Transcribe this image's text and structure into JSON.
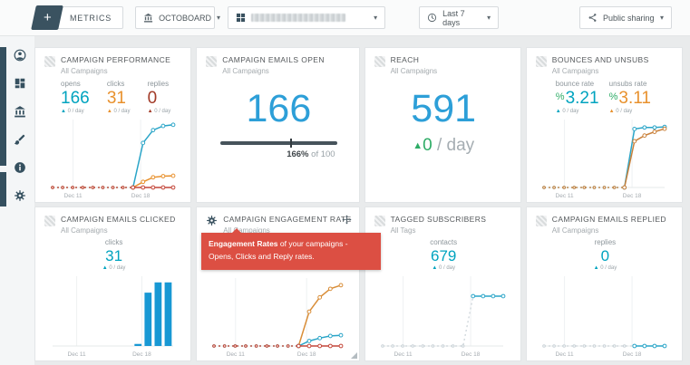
{
  "colors": {
    "navy": "#3a5260",
    "teal": "#00a3bf",
    "orange": "#e8912d",
    "maroon": "#a23b28",
    "blue": "#2d9fd8",
    "green": "#2eac66",
    "tooltip-red": "#dc4f43"
  },
  "topbar": {
    "metrics_button": {
      "plus": "+",
      "label": "METRICS",
      "icon": "plus-icon"
    },
    "org_dropdown": {
      "label": "OCTOBOARD",
      "icon": "bank-icon",
      "caret": "▾"
    },
    "dashboard_dropdown": {
      "label": "",
      "masked": true,
      "icon": "grid-icon",
      "caret": "▾"
    },
    "time_dropdown": {
      "label": "Last 7 days",
      "icon": "clock-icon",
      "caret": "▾"
    },
    "sharing_dropdown": {
      "label": "Public sharing",
      "icon": "share-icon",
      "caret": "▾"
    }
  },
  "sidebar": {
    "items": [
      {
        "icon": "account-icon"
      },
      {
        "icon": "dashboards-icon"
      },
      {
        "icon": "templates-icon"
      },
      {
        "icon": "theme-icon"
      },
      {
        "icon": "info-icon"
      },
      {
        "icon": "settings-icon"
      }
    ]
  },
  "tooltip": {
    "bold": "Engagement Rates",
    "rest": " of your campaigns - Opens, Clicks and Reply rates."
  },
  "cards": [
    {
      "title": "CAMPAIGN PERFORMANCE",
      "subtitle": "All Campaigns",
      "metrics": [
        {
          "label": "opens",
          "value": "166",
          "arrow": "▲",
          "delta": "0 / day"
        },
        {
          "label": "clicks",
          "value": "31",
          "arrow": "▲",
          "delta": "0 / day"
        },
        {
          "label": "replies",
          "value": "0",
          "arrow": "▲",
          "delta": "0 / day"
        }
      ]
    },
    {
      "title": "CAMPAIGN EMAILS OPEN",
      "subtitle": "All Campaigns",
      "big_value": "166",
      "progress": {
        "value_label": "166%",
        "of_label": "of 100",
        "target_pos": 0.6
      }
    },
    {
      "title": "REACH",
      "subtitle": "All Campaigns",
      "big_value": "591",
      "delta": {
        "arrow": "▲",
        "value": "0",
        "unit": "/ day"
      }
    },
    {
      "title": "BOUNCES AND UNSUBS",
      "subtitle": "All Campaigns",
      "metrics": [
        {
          "label": "bounce rate",
          "prefix": "%",
          "value": "3.21",
          "arrow": "▲",
          "delta": "0 / day"
        },
        {
          "label": "unsubs rate",
          "prefix": "%",
          "value": "3.11",
          "arrow": "▲",
          "delta": "0 / day"
        }
      ]
    },
    {
      "title": "CAMPAIGN EMAILS CLICKED",
      "subtitle": "All Campaigns",
      "metric": {
        "label": "clicks",
        "value": "31",
        "arrow": "▲",
        "delta": "0 / day"
      }
    },
    {
      "title": "CAMPAIGN ENGAGEMENT RATE",
      "subtitle": "All Campaigns"
    },
    {
      "title": "TAGGED SUBSCRIBERS",
      "subtitle": "All Tags",
      "metric": {
        "label": "contacts",
        "value": "679",
        "arrow": "▲",
        "delta": "0 / day"
      }
    },
    {
      "title": "CAMPAIGN EMAILS REPLIED",
      "subtitle": "All Campaigns",
      "metric": {
        "label": "replies",
        "value": "0",
        "arrow": "▲",
        "delta": "0 / day"
      }
    }
  ],
  "chart_data": [
    {
      "id": "campaign-performance",
      "type": "line",
      "n": 13,
      "ylim": [
        0,
        180
      ],
      "x_ticks": [
        {
          "pos": 0.17,
          "label": "Dec 11"
        },
        {
          "pos": 0.73,
          "label": "Dec 18"
        }
      ],
      "series": [
        {
          "name": "opens",
          "color": "#2aa5c8",
          "solid_from": 8,
          "values": [
            0,
            0,
            0,
            0,
            0,
            0,
            0,
            0,
            0,
            118,
            152,
            163,
            166
          ]
        },
        {
          "name": "clicks",
          "color": "#e8912d",
          "solid_from": 8,
          "values": [
            0,
            0,
            0,
            0,
            0,
            0,
            0,
            0,
            0,
            15,
            27,
            30,
            31
          ]
        },
        {
          "name": "replies",
          "color": "#c4473a",
          "solid_from": 8,
          "values": [
            0,
            0,
            0,
            0,
            0,
            0,
            0,
            0,
            0,
            0,
            0,
            0,
            0
          ]
        }
      ]
    },
    {
      "id": "bounces-unsubs",
      "type": "line",
      "n": 13,
      "ylim": [
        0,
        3.6
      ],
      "x_ticks": [
        {
          "pos": 0.17,
          "label": "Dec 11"
        },
        {
          "pos": 0.73,
          "label": "Dec 18"
        }
      ],
      "series": [
        {
          "name": "bounce rate",
          "color": "#2aa5c8",
          "solid_from": 8,
          "values": [
            0,
            0,
            0,
            0,
            0,
            0,
            0,
            0,
            0,
            3.1,
            3.18,
            3.18,
            3.21
          ]
        },
        {
          "name": "unsubs rate",
          "color": "#c9803a",
          "solid_from": 8,
          "values": [
            0,
            0,
            0,
            0,
            0,
            0,
            0,
            0,
            0,
            2.45,
            2.75,
            2.95,
            3.11
          ]
        }
      ]
    },
    {
      "id": "emails-clicked",
      "type": "bar",
      "n": 12,
      "ylim": [
        0,
        34
      ],
      "color": "#1898d4",
      "x_ticks": [
        {
          "pos": 0.2,
          "label": "Dec 11"
        },
        {
          "pos": 0.74,
          "label": "Dec 18"
        }
      ],
      "values": [
        0,
        0,
        0,
        0,
        0,
        0,
        0,
        0,
        1,
        26,
        31,
        31
      ]
    },
    {
      "id": "engagement-rate",
      "type": "line",
      "n": 13,
      "ylim": [
        0,
        95
      ],
      "x_ticks": [
        {
          "pos": 0.17,
          "label": "Dec 11"
        },
        {
          "pos": 0.73,
          "label": "Dec 18"
        }
      ],
      "series": [
        {
          "name": "opens rate",
          "color": "#d98e39",
          "solid_from": 8,
          "values": [
            0,
            0,
            0,
            0,
            0,
            0,
            0,
            0,
            0,
            48,
            68,
            80,
            85
          ]
        },
        {
          "name": "clicks rate",
          "color": "#2aa5c8",
          "solid_from": 8,
          "values": [
            0,
            0,
            0,
            0,
            0,
            0,
            0,
            0,
            0,
            7,
            11,
            14,
            15
          ]
        },
        {
          "name": "reply rate",
          "color": "#c4473a",
          "solid_from": 8,
          "values": [
            0,
            0,
            0,
            0,
            0,
            0,
            0,
            0,
            0,
            0,
            0,
            0,
            0
          ]
        }
      ]
    },
    {
      "id": "tagged-subscribers",
      "type": "line",
      "n": 13,
      "ylim": [
        0,
        950
      ],
      "x_ticks": [
        {
          "pos": 0.17,
          "label": "Dec 11"
        },
        {
          "pos": 0.73,
          "label": "Dec 18"
        }
      ],
      "series": [
        {
          "name": "contacts",
          "color": "#2aa5c8",
          "prefix_color": "#c9d2d7",
          "solid_from": 9,
          "values": [
            0,
            0,
            0,
            0,
            0,
            0,
            0,
            0,
            0,
            679,
            679,
            679,
            679
          ]
        }
      ]
    },
    {
      "id": "emails-replied",
      "type": "line",
      "n": 13,
      "ylim": [
        0,
        10
      ],
      "x_ticks": [
        {
          "pos": 0.17,
          "label": "Dec 11"
        },
        {
          "pos": 0.73,
          "label": "Dec 18"
        }
      ],
      "series": [
        {
          "name": "replies",
          "color": "#2aa5c8",
          "prefix_color": "#c9d2d7",
          "solid_from": 9,
          "values": [
            0,
            0,
            0,
            0,
            0,
            0,
            0,
            0,
            0,
            0,
            0,
            0,
            0
          ]
        }
      ]
    }
  ]
}
